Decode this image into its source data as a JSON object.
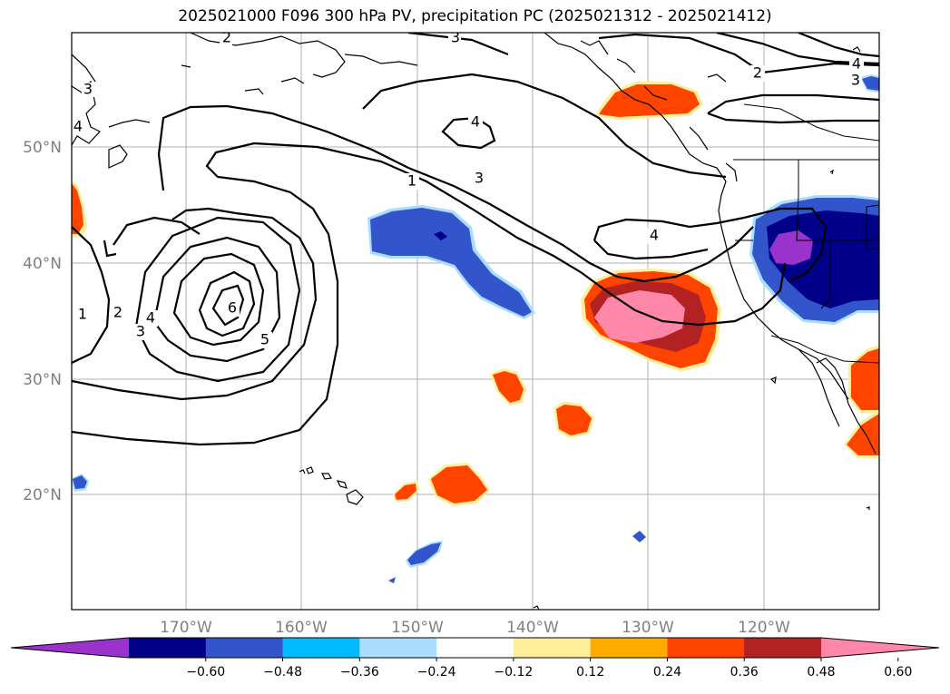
{
  "title": "2025021000 F096 300 hPa PV, precipitation PC (2025021312 - 2025021412)",
  "lat_labels": [
    "50°N",
    "40°N",
    "30°N",
    "20°N"
  ],
  "lon_labels": [
    "170°W",
    "160°W",
    "150°W",
    "140°W",
    "130°W",
    "120°W"
  ],
  "colorbar": {
    "colors": [
      "#9933cc",
      "#000088",
      "#3355cc",
      "#00bbff",
      "#aaddff",
      "#ffffff",
      "#ffee99",
      "#ffaa00",
      "#ff4400",
      "#b22222",
      "#ff88aa"
    ],
    "tick_labels": [
      "−0.60",
      "−0.48",
      "−0.36",
      "−0.24",
      "−0.12",
      "0.12",
      "0.24",
      "0.36",
      "0.48",
      "0.60"
    ]
  },
  "contour_labels": {
    "pv1": "1",
    "pv2": "2",
    "pv3": "3",
    "pv4": "4",
    "pv5": "5",
    "pv6": "6"
  }
}
